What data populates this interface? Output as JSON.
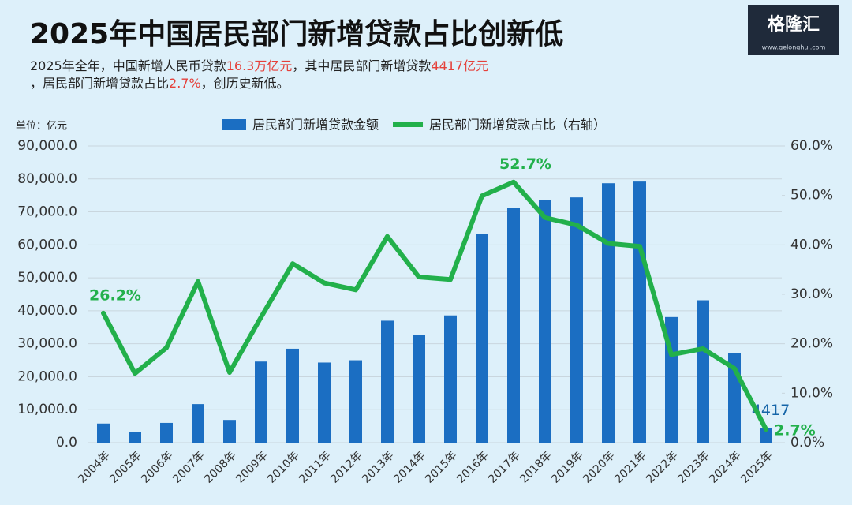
{
  "chart_data": {
    "type": "bar_line",
    "title": "2025年中国居民部门新增贷款占比创新低",
    "subtitle": [
      {
        "text": "2025年全年，中国新增人民币贷款"
      },
      {
        "text": "16.3万亿元",
        "emphasis": true
      },
      {
        "text": "，其中居民部门新增贷款"
      },
      {
        "text": "4417亿元",
        "emphasis": true
      },
      {
        "text": "，居民部门新增贷款占比"
      },
      {
        "text": "2.7%",
        "emphasis": true
      },
      {
        "text": "，创历史新低。"
      }
    ],
    "emphasis_color": "#e5403a",
    "logo": {
      "name": "格隆汇",
      "url": "www.gelonghui.com"
    },
    "y_unit": "单位：亿元",
    "categories": [
      "2004年",
      "2005年",
      "2006年",
      "2007年",
      "2008年",
      "2009年",
      "2010年",
      "2011年",
      "2012年",
      "2013年",
      "2014年",
      "2015年",
      "2016年",
      "2017年",
      "2018年",
      "2019年",
      "2020年",
      "2021年",
      "2022年",
      "2023年",
      "2024年",
      "2025年"
    ],
    "series": [
      {
        "name": "居民部门新增贷款金额",
        "type": "bar",
        "color": "#1b6ec2",
        "values": [
          5800,
          3300,
          6000,
          11700,
          6900,
          24600,
          28500,
          24300,
          25000,
          37000,
          32600,
          38600,
          63200,
          71300,
          73700,
          74400,
          78700,
          79200,
          38100,
          43200,
          27100,
          4417
        ],
        "value_labels": [
          null,
          null,
          null,
          null,
          null,
          null,
          null,
          null,
          null,
          null,
          null,
          null,
          null,
          null,
          null,
          null,
          null,
          null,
          null,
          null,
          null,
          "4417"
        ]
      },
      {
        "name": "居民部门新增贷款占比（右轴）",
        "type": "line",
        "axis": "y2",
        "color": "#22b04b",
        "values": [
          26.2,
          14.0,
          19.2,
          32.6,
          14.2,
          25.4,
          36.2,
          32.3,
          30.9,
          41.7,
          33.5,
          33.0,
          49.9,
          52.7,
          45.5,
          44.0,
          40.3,
          39.7,
          17.8,
          19.0,
          15.0,
          2.7
        ],
        "value_labels": [
          "26.2%",
          null,
          null,
          null,
          null,
          null,
          null,
          null,
          null,
          null,
          null,
          null,
          null,
          "52.7%",
          null,
          null,
          null,
          null,
          null,
          null,
          null,
          "2.7%"
        ]
      }
    ],
    "ylim": [
      0,
      90000
    ],
    "yticks": [
      {
        "value": 0,
        "label": "0.0"
      },
      {
        "value": 10000,
        "label": "10,000.0"
      },
      {
        "value": 20000,
        "label": "20,000.0"
      },
      {
        "value": 30000,
        "label": "30,000.0"
      },
      {
        "value": 40000,
        "label": "40,000.0"
      },
      {
        "value": 50000,
        "label": "50,000.0"
      },
      {
        "value": 60000,
        "label": "60,000.0"
      },
      {
        "value": 70000,
        "label": "70,000.0"
      },
      {
        "value": 80000,
        "label": "80,000.0"
      },
      {
        "value": 90000,
        "label": "90,000.0"
      }
    ],
    "y2lim": [
      0,
      60
    ],
    "y2ticks": [
      {
        "value": 0,
        "label": "0.0%"
      },
      {
        "value": 10,
        "label": "10.0%"
      },
      {
        "value": 20,
        "label": "20.0%"
      },
      {
        "value": 30,
        "label": "30.0%"
      },
      {
        "value": 40,
        "label": "40.0%"
      },
      {
        "value": 50,
        "label": "50.0%"
      },
      {
        "value": 60,
        "label": "60.0%"
      }
    ],
    "grid": true
  }
}
